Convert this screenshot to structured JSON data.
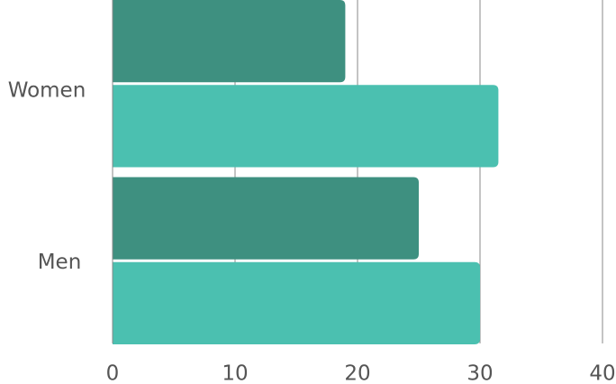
{
  "chart_data": {
    "type": "hbar",
    "categories": [
      "Women",
      "Men"
    ],
    "series": [
      {
        "color": "#3e9080",
        "values": [
          19,
          25
        ]
      },
      {
        "color": "#4bc0b0",
        "values": [
          31.5,
          30
        ]
      }
    ],
    "xlim": [
      0,
      40
    ],
    "xticks": [
      0,
      10,
      20,
      30,
      40
    ],
    "grid": true
  }
}
